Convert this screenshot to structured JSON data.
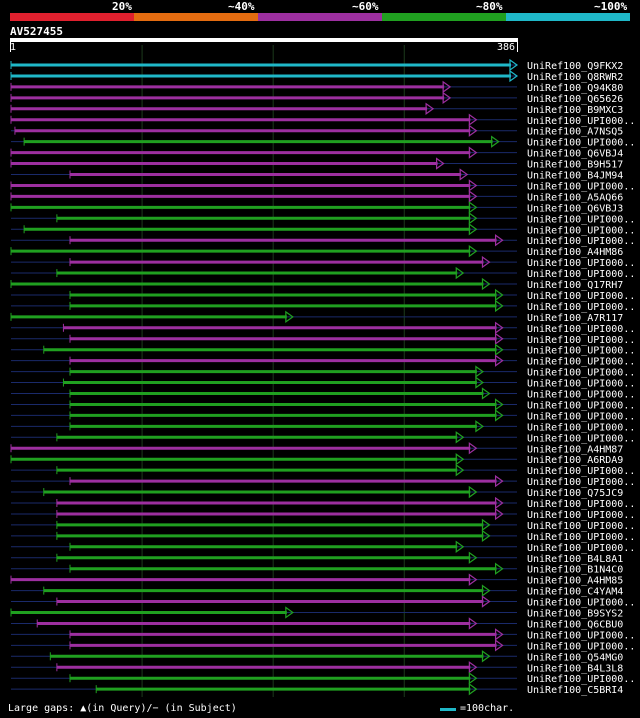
{
  "legend": {
    "colors": [
      "#e0202e",
      "#e46c10",
      "#9d2fa0",
      "#20a020",
      "#1fb8c8"
    ],
    "labels": [
      "20%",
      "~40%",
      "~60%",
      "~80%",
      "~100%"
    ]
  },
  "query": {
    "label": "AV527455",
    "start": "1",
    "end": "386"
  },
  "colors": {
    "cyan": "#1fb8c8",
    "magenta": "#9d2fa0",
    "green": "#20a020",
    "gap": "#1a2a6a",
    "grid": "#1c3a1c"
  },
  "hits": [
    {
      "name": "UniRef100_Q9FKX2",
      "color": "cyan",
      "start": 0,
      "end": 386
    },
    {
      "name": "UniRef100_Q8RWR2",
      "color": "cyan",
      "start": 0,
      "end": 386
    },
    {
      "name": "UniRef100_Q94K80",
      "color": "magenta",
      "start": 0,
      "end": 335
    },
    {
      "name": "UniRef100_Q65626",
      "color": "magenta",
      "start": 0,
      "end": 335
    },
    {
      "name": "UniRef100_B9MXC3",
      "color": "magenta",
      "start": 0,
      "end": 322
    },
    {
      "name": "UniRef100_UPI000..",
      "color": "magenta",
      "start": 0,
      "end": 355
    },
    {
      "name": "UniRef100_A7NSQ5",
      "color": "magenta",
      "start": 3,
      "end": 355
    },
    {
      "name": "UniRef100_UPI000..",
      "color": "green",
      "start": 10,
      "end": 372
    },
    {
      "name": "UniRef100_Q6VBJ4",
      "color": "magenta",
      "start": 0,
      "end": 355
    },
    {
      "name": "UniRef100_B9H517",
      "color": "magenta",
      "start": 0,
      "end": 330
    },
    {
      "name": "UniRef100_B4JM94",
      "color": "magenta",
      "start": 45,
      "end": 348
    },
    {
      "name": "UniRef100_UPI000..",
      "color": "magenta",
      "start": 0,
      "end": 355
    },
    {
      "name": "UniRef100_A5AQ66",
      "color": "magenta",
      "start": 0,
      "end": 355
    },
    {
      "name": "UniRef100_Q6VBJ3",
      "color": "green",
      "start": 0,
      "end": 355
    },
    {
      "name": "UniRef100_UPI000..",
      "color": "green",
      "start": 35,
      "end": 355
    },
    {
      "name": "UniRef100_UPI000..",
      "color": "green",
      "start": 10,
      "end": 355
    },
    {
      "name": "UniRef100_UPI000..",
      "color": "magenta",
      "start": 45,
      "end": 375
    },
    {
      "name": "UniRef100_A4HM86",
      "color": "green",
      "start": 0,
      "end": 355
    },
    {
      "name": "UniRef100_UPI000..",
      "color": "magenta",
      "start": 45,
      "end": 365
    },
    {
      "name": "UniRef100_UPI000..",
      "color": "green",
      "start": 35,
      "end": 345
    },
    {
      "name": "UniRef100_Q17RH7",
      "color": "green",
      "start": 0,
      "end": 365
    },
    {
      "name": "UniRef100_UPI000..",
      "color": "green",
      "start": 45,
      "end": 375
    },
    {
      "name": "UniRef100_UPI000..",
      "color": "green",
      "start": 45,
      "end": 375
    },
    {
      "name": "UniRef100_A7R117",
      "color": "green",
      "start": 0,
      "end": 215
    },
    {
      "name": "UniRef100_UPI000..",
      "color": "magenta",
      "start": 40,
      "end": 375
    },
    {
      "name": "UniRef100_UPI000..",
      "color": "magenta",
      "start": 45,
      "end": 375
    },
    {
      "name": "UniRef100_UPI000..",
      "color": "green",
      "start": 25,
      "end": 375
    },
    {
      "name": "UniRef100_UPI000..",
      "color": "magenta",
      "start": 45,
      "end": 375
    },
    {
      "name": "UniRef100_UPI000..",
      "color": "green",
      "start": 45,
      "end": 360
    },
    {
      "name": "UniRef100_UPI000..",
      "color": "green",
      "start": 40,
      "end": 360
    },
    {
      "name": "UniRef100_UPI000..",
      "color": "green",
      "start": 45,
      "end": 365
    },
    {
      "name": "UniRef100_UPI000..",
      "color": "green",
      "start": 45,
      "end": 375
    },
    {
      "name": "UniRef100_UPI000..",
      "color": "green",
      "start": 45,
      "end": 375
    },
    {
      "name": "UniRef100_UPI000..",
      "color": "green",
      "start": 45,
      "end": 360
    },
    {
      "name": "UniRef100_UPI000..",
      "color": "green",
      "start": 35,
      "end": 345
    },
    {
      "name": "UniRef100_A4HM87",
      "color": "magenta",
      "start": 0,
      "end": 355
    },
    {
      "name": "UniRef100_A6RDA9",
      "color": "green",
      "start": 0,
      "end": 345
    },
    {
      "name": "UniRef100_UPI000..",
      "color": "green",
      "start": 35,
      "end": 345
    },
    {
      "name": "UniRef100_UPI000..",
      "color": "magenta",
      "start": 45,
      "end": 375
    },
    {
      "name": "UniRef100_Q75JC9",
      "color": "green",
      "start": 25,
      "end": 355
    },
    {
      "name": "UniRef100_UPI000..",
      "color": "magenta",
      "start": 35,
      "end": 375
    },
    {
      "name": "UniRef100_UPI000..",
      "color": "magenta",
      "start": 35,
      "end": 375
    },
    {
      "name": "UniRef100_UPI000..",
      "color": "green",
      "start": 35,
      "end": 365
    },
    {
      "name": "UniRef100_UPI000..",
      "color": "green",
      "start": 35,
      "end": 365
    },
    {
      "name": "UniRef100_UPI000..",
      "color": "green",
      "start": 45,
      "end": 345
    },
    {
      "name": "UniRef100_B4L8A1",
      "color": "green",
      "start": 35,
      "end": 355
    },
    {
      "name": "UniRef100_B1N4C0",
      "color": "green",
      "start": 45,
      "end": 375
    },
    {
      "name": "UniRef100_A4HM85",
      "color": "magenta",
      "start": 0,
      "end": 355
    },
    {
      "name": "UniRef100_C4YAM4",
      "color": "green",
      "start": 25,
      "end": 365
    },
    {
      "name": "UniRef100_UPI000..",
      "color": "magenta",
      "start": 35,
      "end": 365
    },
    {
      "name": "UniRef100_B9SYS2",
      "color": "green",
      "start": 0,
      "end": 215
    },
    {
      "name": "UniRef100_Q6CBU0",
      "color": "magenta",
      "start": 20,
      "end": 355
    },
    {
      "name": "UniRef100_UPI000..",
      "color": "magenta",
      "start": 45,
      "end": 375
    },
    {
      "name": "UniRef100_UPI000..",
      "color": "magenta",
      "start": 45,
      "end": 375
    },
    {
      "name": "UniRef100_Q54MG0",
      "color": "green",
      "start": 30,
      "end": 365
    },
    {
      "name": "UniRef100_B4L3L8",
      "color": "magenta",
      "start": 35,
      "end": 355
    },
    {
      "name": "UniRef100_UPI000..",
      "color": "green",
      "start": 45,
      "end": 355
    },
    {
      "name": "UniRef100_C5BRI4",
      "color": "green",
      "start": 65,
      "end": 355
    }
  ],
  "footer": {
    "gaps": "Large gaps: ▲(in Query)/− (in Subject)",
    "scale": "=100char."
  }
}
